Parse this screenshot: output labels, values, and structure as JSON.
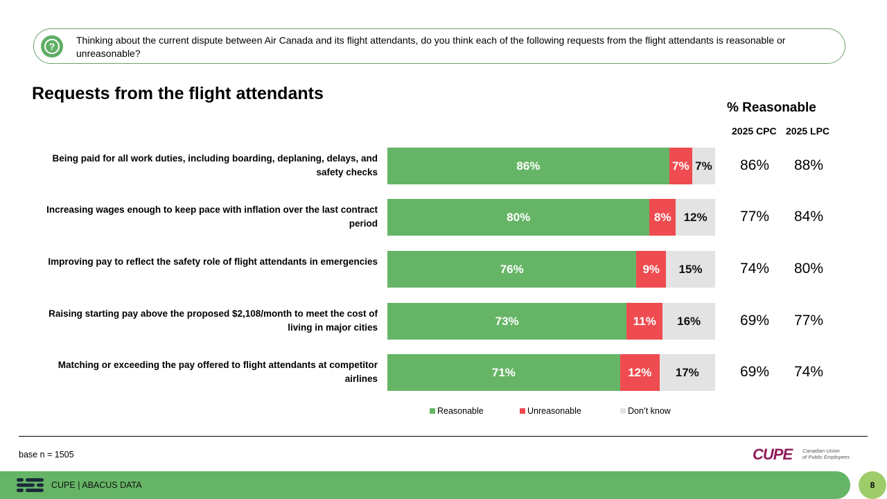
{
  "question": {
    "text": "Thinking about the current dispute between Air Canada and its flight attendants, do you think each of the following requests from the flight attendants is reasonable or unreasonable?",
    "icon": "question-icon"
  },
  "chart_data": {
    "type": "bar",
    "orientation": "horizontal-stacked",
    "title": "Requests from the flight attendants",
    "categories": [
      "Being paid for all work duties, including boarding, deplaning, delays, and safety checks",
      "Increasing wages enough to keep pace with inflation over the last contract period",
      "Improving pay to reflect the safety role of flight attendants in emergencies",
      "Raising starting pay above the proposed $2,108/month to meet the cost of living in major cities",
      "Matching or exceeding the pay offered to flight attendants at competitor airlines"
    ],
    "series": [
      {
        "name": "Reasonable",
        "values": [
          86,
          80,
          76,
          73,
          71
        ],
        "labels": [
          "86%",
          "80%",
          "76%",
          "73%",
          "71%"
        ],
        "color": "#66b566"
      },
      {
        "name": "Unreasonable",
        "values": [
          7,
          8,
          9,
          11,
          12
        ],
        "labels": [
          "7%",
          "8%",
          "9%",
          "11%",
          "12%"
        ],
        "color": "#ee4c50"
      },
      {
        "name": "Don’t know",
        "values": [
          7,
          12,
          15,
          16,
          17
        ],
        "labels": [
          "7%",
          "12%",
          "15%",
          "16%",
          "17%"
        ],
        "color": "#e3e3e3"
      }
    ],
    "legend_position": "bottom",
    "side_table": {
      "header": "% Reasonable",
      "columns": [
        "2025 CPC",
        "2025 LPC"
      ],
      "rows": [
        [
          "86%",
          "88%"
        ],
        [
          "77%",
          "84%"
        ],
        [
          "74%",
          "80%"
        ],
        [
          "69%",
          "77%"
        ],
        [
          "69%",
          "74%"
        ]
      ]
    }
  },
  "footer": {
    "base_note": "base n = 1505",
    "source": "CUPE | ABACUS DATA",
    "page_number": "8",
    "logo_word": "CUPE",
    "logo_subtitle_line1": "Canadian Union",
    "logo_subtitle_line2": "of Public Employees"
  }
}
